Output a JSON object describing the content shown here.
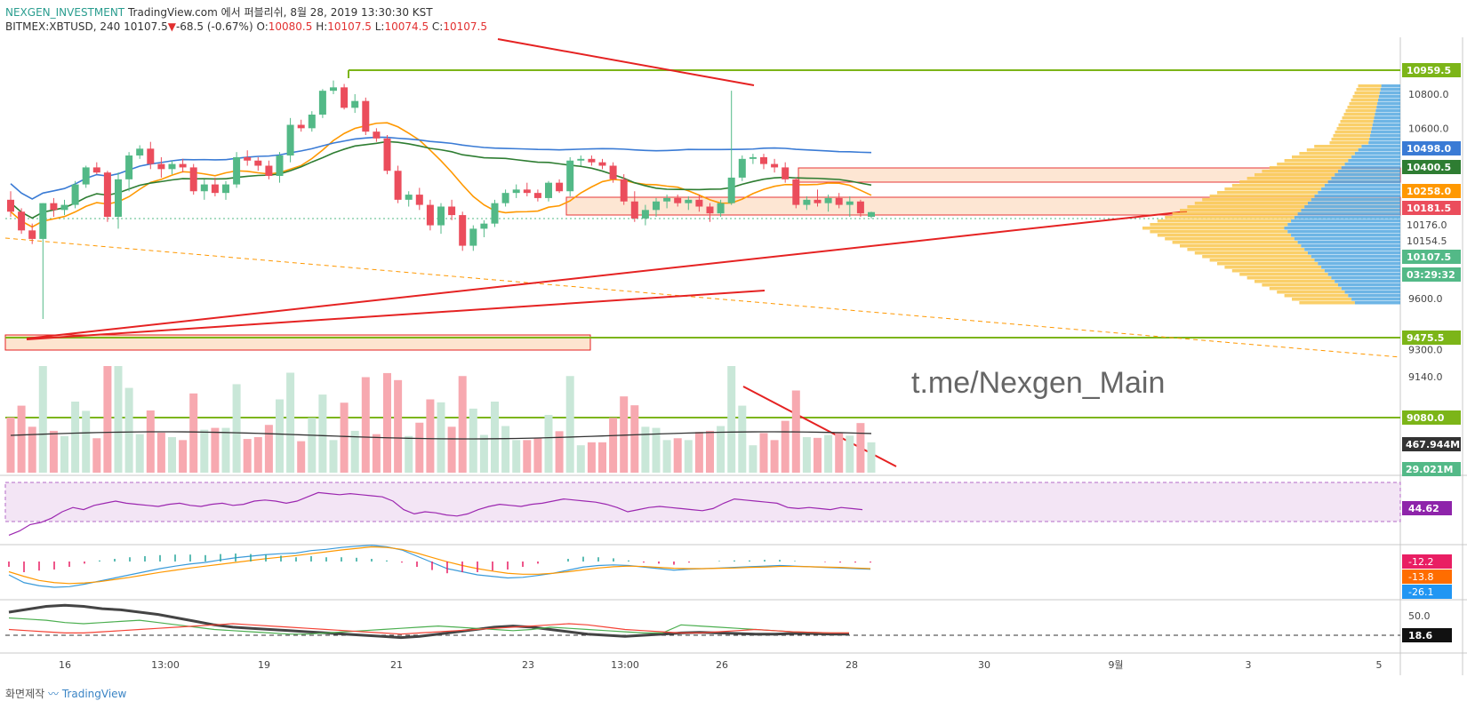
{
  "header": {
    "source": "NEXGEN_INVESTMENT",
    "published": "TradingView.com 에서 퍼블리쉬, 8월 28, 2019 13:30:30 KST",
    "symbol": "BITMEX:XBTUSD, 240",
    "last": "10107.5",
    "change": "-68.5 (-0.67%)",
    "o_label": "O:",
    "o_value": "10080.5",
    "h_label": "H:",
    "h_value": "10107.5",
    "l_label": "L:",
    "l_value": "10074.5",
    "c_label": "C:",
    "c_value": "10107.5"
  },
  "watermark": "t.me/Nexgen_Main",
  "footer": {
    "made_with": "화면제작",
    "brand": "TradingView"
  },
  "colors": {
    "up": "#53b987",
    "down": "#eb4d5c",
    "vol_up": "#c9e7d8",
    "vol_down": "#f7a9b0",
    "ma_orange": "#ff9800",
    "ma_green": "#2e7d32",
    "ma_blue": "#3a7bd5",
    "trend_red": "#e52222",
    "level_green": "#7cb518",
    "zone_fill": "#fde4cf",
    "vp_up": "#4aa3df",
    "vp_down": "#f9c74f",
    "rsi": "#9c27b0",
    "rsi_band": "#f3e5f5"
  },
  "chart_data": [
    {
      "type": "candlestick",
      "symbol": "BITMEX:XBTUSD",
      "interval": "240",
      "x_labels": [
        "16",
        "13:00",
        "19",
        "21",
        "23",
        "13:00",
        "26",
        "28",
        "30",
        "9월",
        "3",
        "5"
      ],
      "y_ticks": [
        10800.0,
        10600.0,
        9600.0,
        9300.0,
        9140.0
      ],
      "price_tags": [
        {
          "value": "10959.5",
          "color": "#7cb518"
        },
        {
          "value": "10498.0",
          "color": "#3a7bd5"
        },
        {
          "value": "10400.5",
          "color": "#2e7d32"
        },
        {
          "value": "10258.0",
          "color": "#ff9800"
        },
        {
          "value": "10181.5",
          "color": "#eb4d5c"
        },
        {
          "value": "10176.0",
          "color": ""
        },
        {
          "value": "10154.5",
          "color": ""
        },
        {
          "value": "10107.5",
          "color": "#53b987"
        },
        {
          "value": "03:29:32",
          "color": "#53b987"
        },
        {
          "value": "9475.5",
          "color": "#7cb518"
        },
        {
          "value": "9080.0",
          "color": "#7cb518"
        }
      ],
      "candles": [
        [
          10180,
          10230,
          10080,
          10110
        ],
        [
          10110,
          10130,
          9980,
          10000
        ],
        [
          10000,
          10040,
          9920,
          9950
        ],
        [
          9950,
          10160,
          9480,
          10160
        ],
        [
          10160,
          10190,
          10080,
          10120
        ],
        [
          10120,
          10180,
          10090,
          10150
        ],
        [
          10150,
          10290,
          10130,
          10270
        ],
        [
          10270,
          10380,
          10250,
          10370
        ],
        [
          10370,
          10400,
          10330,
          10340
        ],
        [
          10340,
          10350,
          10050,
          10080
        ],
        [
          10080,
          10340,
          10010,
          10300
        ],
        [
          10300,
          10460,
          10230,
          10440
        ],
        [
          10440,
          10500,
          10420,
          10480
        ],
        [
          10480,
          10520,
          10360,
          10390
        ],
        [
          10390,
          10430,
          10310,
          10360
        ],
        [
          10360,
          10410,
          10330,
          10390
        ],
        [
          10390,
          10420,
          10340,
          10370
        ],
        [
          10370,
          10390,
          10210,
          10230
        ],
        [
          10230,
          10300,
          10180,
          10270
        ],
        [
          10270,
          10310,
          10200,
          10220
        ],
        [
          10220,
          10290,
          10180,
          10270
        ],
        [
          10270,
          10460,
          10250,
          10430
        ],
        [
          10430,
          10470,
          10380,
          10410
        ],
        [
          10410,
          10430,
          10350,
          10380
        ],
        [
          10380,
          10410,
          10300,
          10320
        ],
        [
          10320,
          10460,
          10280,
          10440
        ],
        [
          10440,
          10660,
          10400,
          10620
        ],
        [
          10620,
          10650,
          10580,
          10600
        ],
        [
          10600,
          10700,
          10580,
          10680
        ],
        [
          10680,
          10830,
          10660,
          10820
        ],
        [
          10820,
          10880,
          10800,
          10840
        ],
        [
          10840,
          10860,
          10710,
          10720
        ],
        [
          10720,
          10800,
          10690,
          10760
        ],
        [
          10760,
          10780,
          10560,
          10580
        ],
        [
          10580,
          10600,
          10520,
          10540
        ],
        [
          10540,
          10560,
          10330,
          10350
        ],
        [
          10350,
          10380,
          10160,
          10180
        ],
        [
          10180,
          10230,
          10140,
          10210
        ],
        [
          10210,
          10250,
          10120,
          10150
        ],
        [
          10150,
          10180,
          10000,
          10030
        ],
        [
          10030,
          10160,
          9980,
          10140
        ],
        [
          10140,
          10180,
          10060,
          10090
        ],
        [
          10090,
          10110,
          9880,
          9910
        ],
        [
          9910,
          10030,
          9880,
          10010
        ],
        [
          10010,
          10060,
          9960,
          10040
        ],
        [
          10040,
          10180,
          10020,
          10160
        ],
        [
          10160,
          10240,
          10140,
          10220
        ],
        [
          10220,
          10270,
          10190,
          10240
        ],
        [
          10240,
          10280,
          10200,
          10220
        ],
        [
          10220,
          10240,
          10170,
          10190
        ],
        [
          10190,
          10290,
          10170,
          10280
        ],
        [
          10280,
          10300,
          10220,
          10230
        ],
        [
          10230,
          10430,
          10200,
          10410
        ],
        [
          10410,
          10440,
          10380,
          10420
        ],
        [
          10420,
          10440,
          10380,
          10400
        ],
        [
          10400,
          10420,
          10360,
          10380
        ],
        [
          10380,
          10400,
          10280,
          10300
        ],
        [
          10300,
          10330,
          10150,
          10170
        ],
        [
          10170,
          10230,
          10050,
          10070
        ],
        [
          10070,
          10150,
          10030,
          10120
        ],
        [
          10120,
          10190,
          10080,
          10170
        ],
        [
          10170,
          10210,
          10130,
          10190
        ],
        [
          10190,
          10210,
          10140,
          10160
        ],
        [
          10160,
          10200,
          10120,
          10180
        ],
        [
          10180,
          10210,
          10110,
          10140
        ],
        [
          10140,
          10160,
          10050,
          10100
        ],
        [
          10100,
          10180,
          10080,
          10160
        ],
        [
          10160,
          10820,
          10150,
          10310
        ],
        [
          10310,
          10440,
          10290,
          10420
        ],
        [
          10420,
          10450,
          10390,
          10430
        ],
        [
          10430,
          10450,
          10360,
          10390
        ],
        [
          10390,
          10420,
          10340,
          10370
        ],
        [
          10370,
          10400,
          10280,
          10300
        ],
        [
          10300,
          10310,
          10130,
          10150
        ],
        [
          10150,
          10200,
          10120,
          10180
        ],
        [
          10180,
          10240,
          10140,
          10160
        ],
        [
          10160,
          10210,
          10110,
          10190
        ],
        [
          10190,
          10220,
          10130,
          10150
        ],
        [
          10150,
          10200,
          10080,
          10170
        ],
        [
          10170,
          10180,
          10080,
          10100
        ],
        [
          10080,
          10110,
          10070,
          10107.5
        ]
      ],
      "volume_labels": [
        "467.944M",
        "29.021M"
      ],
      "rsi": {
        "value": "44.62",
        "series": [
          28,
          32,
          38,
          40,
          44,
          50,
          54,
          52,
          56,
          58,
          60,
          58,
          57,
          56,
          55,
          57,
          58,
          56,
          55,
          57,
          58,
          56,
          57,
          60,
          61,
          60,
          58,
          60,
          64,
          68,
          67,
          66,
          67,
          66,
          65,
          64,
          60,
          52,
          48,
          50,
          49,
          47,
          46,
          48,
          52,
          55,
          57,
          56,
          55,
          57,
          58,
          60,
          62,
          61,
          60,
          59,
          57,
          54,
          50,
          52,
          54,
          55,
          54,
          53,
          52,
          51,
          53,
          58,
          62,
          61,
          60,
          59,
          58,
          54,
          53,
          54,
          53,
          52,
          54,
          53,
          52
        ]
      },
      "macd": {
        "values": [
          "-12.2",
          "-13.8",
          "-26.1"
        ],
        "macd": [
          -20,
          -45,
          -55,
          -60,
          -58,
          -50,
          -40,
          -30,
          -20,
          -10,
          0,
          8,
          15,
          20,
          28,
          35,
          40,
          45,
          48,
          50,
          58,
          62,
          68,
          72,
          75,
          70,
          60,
          40,
          20,
          0,
          -10,
          -20,
          -25,
          -30,
          -28,
          -22,
          -15,
          -5,
          5,
          10,
          12,
          10,
          5,
          0,
          -5,
          -2,
          0,
          2,
          4,
          6,
          8,
          10,
          8,
          6,
          4,
          2,
          0,
          -2
        ],
        "signal": [
          -10,
          -25,
          -38,
          -45,
          -48,
          -46,
          -42,
          -35,
          -28,
          -20,
          -12,
          -5,
          2,
          8,
          14,
          20,
          26,
          32,
          37,
          42,
          48,
          54,
          60,
          65,
          70,
          68,
          62,
          50,
          36,
          22,
          10,
          0,
          -8,
          -15,
          -18,
          -18,
          -15,
          -10,
          -4,
          2,
          6,
          8,
          7,
          4,
          1,
          0,
          0,
          1,
          2,
          4,
          5,
          7,
          7,
          6,
          5,
          4,
          2,
          0
        ]
      },
      "dmi": {
        "values": [
          "50.0",
          "18.6"
        ],
        "adx": [
          40,
          45,
          50,
          52,
          50,
          46,
          44,
          40,
          36,
          30,
          24,
          18,
          14,
          12,
          10,
          8,
          6,
          4,
          2,
          0,
          -2,
          -4,
          -2,
          2,
          6,
          10,
          14,
          16,
          14,
          10,
          6,
          2,
          0,
          -2,
          0,
          2,
          4,
          5,
          4,
          3,
          2,
          2,
          3,
          3,
          2,
          2
        ],
        "plus": [
          30,
          28,
          26,
          22,
          20,
          22,
          24,
          26,
          22,
          18,
          14,
          10,
          8,
          6,
          4,
          2,
          2,
          4,
          6,
          8,
          10,
          12,
          14,
          16,
          14,
          12,
          10,
          8,
          10,
          14,
          12,
          10,
          8,
          6,
          4,
          4,
          18,
          16,
          14,
          12,
          10,
          8,
          6,
          5,
          4,
          4
        ],
        "minus": [
          10,
          8,
          6,
          4,
          4,
          6,
          8,
          10,
          12,
          14,
          16,
          18,
          20,
          18,
          16,
          14,
          12,
          10,
          8,
          6,
          4,
          2,
          4,
          6,
          8,
          10,
          12,
          14,
          16,
          18,
          20,
          18,
          14,
          10,
          8,
          6,
          4,
          4,
          6,
          8,
          10,
          8,
          6,
          5,
          4,
          4
        ]
      }
    }
  ]
}
